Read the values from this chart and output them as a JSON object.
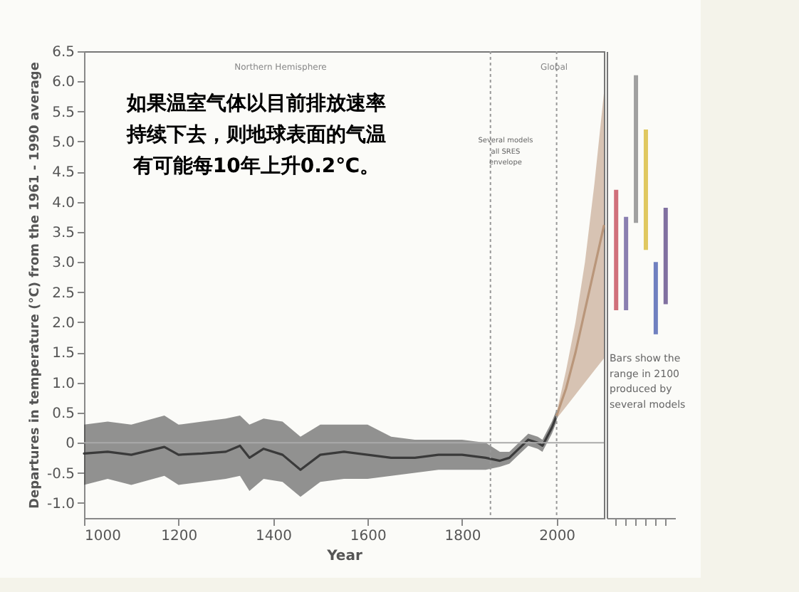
{
  "chart_data": [
    {
      "type": "line",
      "xlabel": "Year",
      "ylabel": "Departures in temperature (°C) from the 1961 - 1990 average",
      "xlim": [
        1000,
        2100
      ],
      "ylim": [
        -1.25,
        6.5
      ],
      "xticks": [
        1000,
        1200,
        1400,
        1600,
        1800,
        2000
      ],
      "yticks": [
        {
          "value": -1,
          "label": "-1.0"
        },
        -0.5,
        0,
        0.5,
        {
          "value": 1,
          "label": "1.0"
        },
        1.5,
        {
          "value": 2,
          "label": "2.0"
        },
        2.5,
        {
          "value": 3,
          "label": "3.0"
        },
        3.5,
        {
          "value": 4,
          "label": "4.0"
        },
        4.5,
        {
          "value": 5,
          "label": "5.0"
        },
        5.5,
        {
          "value": 6,
          "label": "6.0"
        },
        6.5
      ],
      "series": [
        {
          "color": "#3a3a3a",
          "x": [
            1000,
            1050,
            1100,
            1170,
            1200,
            1250,
            1300,
            1330,
            1350,
            1380,
            1420,
            1458,
            1500,
            1550,
            1600,
            1650,
            1700,
            1750,
            1800,
            1850,
            1880,
            1900,
            1920,
            1940,
            1960,
            1970,
            1980,
            1990,
            2000
          ],
          "values": [
            -0.18,
            -0.15,
            -0.2,
            -0.07,
            -0.2,
            -0.18,
            -0.15,
            -0.05,
            -0.25,
            -0.1,
            -0.2,
            -0.45,
            -0.2,
            -0.15,
            -0.2,
            -0.25,
            -0.25,
            -0.2,
            -0.2,
            -0.25,
            -0.3,
            -0.25,
            -0.1,
            0.05,
            0.0,
            -0.05,
            0.1,
            0.25,
            0.45
          ],
          "lower": [
            -0.7,
            -0.6,
            -0.7,
            -0.55,
            -0.7,
            -0.65,
            -0.6,
            -0.55,
            -0.8,
            -0.6,
            -0.65,
            -0.9,
            -0.65,
            -0.6,
            -0.6,
            -0.55,
            -0.5,
            -0.45,
            -0.45,
            -0.45,
            -0.4,
            -0.35,
            -0.2,
            -0.05,
            -0.1,
            -0.15,
            0.0,
            0.15,
            0.35
          ],
          "upper": [
            0.3,
            0.35,
            0.3,
            0.45,
            0.3,
            0.35,
            0.4,
            0.45,
            0.3,
            0.4,
            0.35,
            0.1,
            0.3,
            0.3,
            0.3,
            0.1,
            0.05,
            0.05,
            0.05,
            0.0,
            -0.15,
            -0.15,
            0.0,
            0.15,
            0.1,
            0.05,
            0.2,
            0.35,
            0.55
          ]
        },
        {
          "color": "#b9967a",
          "x": [
            2000,
            2020,
            2040,
            2060,
            2080,
            2100
          ],
          "values": [
            0.45,
            0.9,
            1.5,
            2.2,
            2.9,
            3.6
          ],
          "lower": [
            0.4,
            0.6,
            0.8,
            1.0,
            1.2,
            1.4
          ],
          "upper": [
            0.5,
            1.2,
            2.0,
            3.0,
            4.3,
            5.8
          ]
        }
      ],
      "ref_lines": [
        {
          "axis": "x",
          "value": 1860,
          "color": "#999999",
          "line_style": "dotted"
        },
        {
          "axis": "x",
          "value": 2000,
          "color": "#999999",
          "line_style": "dotted"
        },
        {
          "axis": "y",
          "value": 0,
          "color": "#aaaaaa"
        }
      ],
      "annotations": [
        "如果温室气体以目前排放速率",
        "持续下去，则地球表面的气温",
        "有可能每10年上升0.2℃。",
        "Northern Hemisphere",
        "Global",
        "Several models\nall SRES\nenvelope"
      ]
    },
    {
      "type": "bar",
      "categories": [
        null,
        null,
        null,
        null,
        null,
        null
      ],
      "ylim": [
        -1.25,
        6.5
      ],
      "base": [
        2.2,
        2.2,
        3.65,
        3.2,
        1.8,
        2.3
      ],
      "values": [
        2.0,
        1.55,
        2.45,
        2.0,
        1.2,
        1.6
      ],
      "colors": [
        "#d0707a",
        "#8a7fb0",
        "#a0a0a0",
        "#e0c860",
        "#7080c0",
        "#8070a0"
      ],
      "annotations": [
        "Bars show the\nrange in 2100\nproduced by\nseveral models"
      ]
    }
  ]
}
